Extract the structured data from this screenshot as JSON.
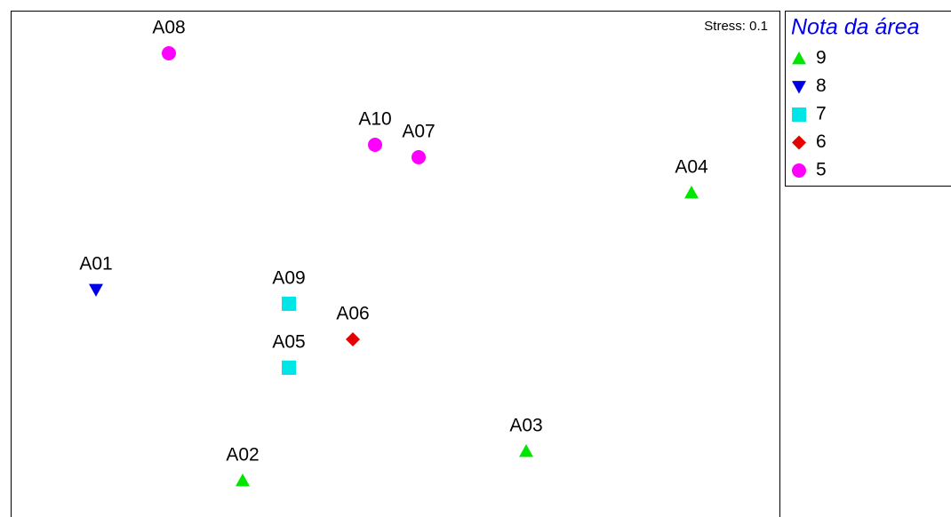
{
  "chart_data": {
    "type": "scatter",
    "annotation": "Stress: 0.1",
    "legend": {
      "title": "Nota da área",
      "items": [
        {
          "label": "9",
          "color": "#00e600",
          "shape": "triangle-up"
        },
        {
          "label": "8",
          "color": "#0000e6",
          "shape": "triangle-down"
        },
        {
          "label": "7",
          "color": "#00e6e6",
          "shape": "square"
        },
        {
          "label": "6",
          "color": "#e60000",
          "shape": "diamond"
        },
        {
          "label": "5",
          "color": "#ff00ff",
          "shape": "circle"
        }
      ]
    },
    "points": [
      {
        "label": "A08",
        "group": "5"
      },
      {
        "label": "A10",
        "group": "5"
      },
      {
        "label": "A07",
        "group": "5"
      },
      {
        "label": "A04",
        "group": "9"
      },
      {
        "label": "A01",
        "group": "8"
      },
      {
        "label": "A09",
        "group": "7"
      },
      {
        "label": "A06",
        "group": "6"
      },
      {
        "label": "A05",
        "group": "7"
      },
      {
        "label": "A03",
        "group": "9"
      },
      {
        "label": "A02",
        "group": "9"
      }
    ]
  }
}
